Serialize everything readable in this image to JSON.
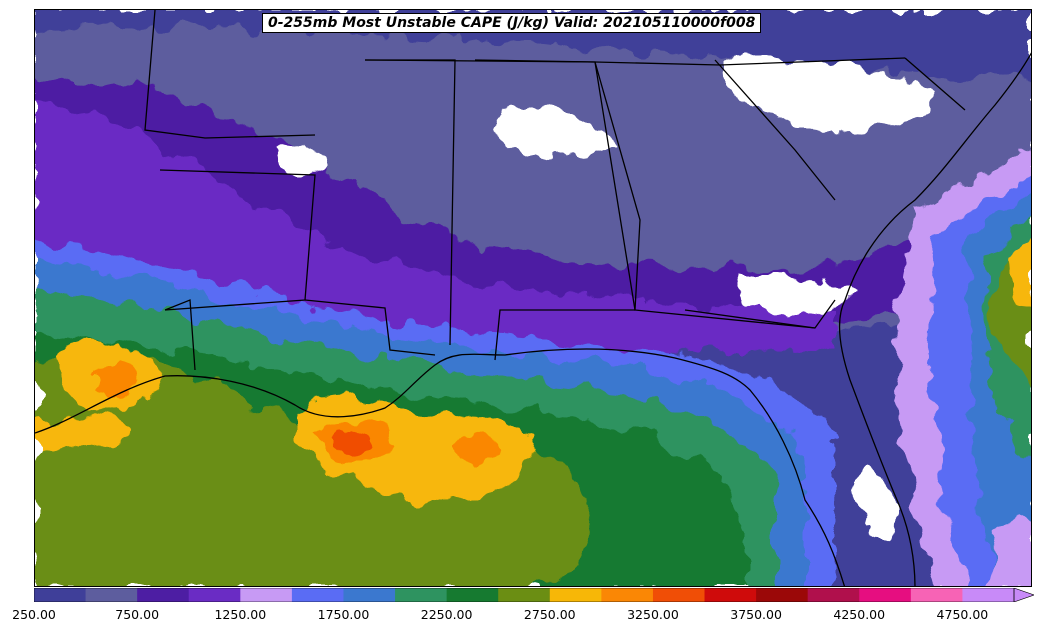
{
  "title": "0-255mb Most Unstable CAPE (J/kg) Valid: 202105110000f008",
  "colorbar": {
    "levels": [
      250,
      500,
      750,
      1000,
      1250,
      1500,
      1750,
      2000,
      2250,
      2500,
      2750,
      3000,
      3250,
      3500,
      3750,
      4000,
      4250,
      4500,
      4750,
      5000
    ],
    "colors": [
      "#3f3f99",
      "#5d5d9e",
      "#4d1ea3",
      "#6a2cc4",
      "#c79af4",
      "#5a6cf4",
      "#3b78cf",
      "#2e9360",
      "#167a30",
      "#6b8e13",
      "#f7b707",
      "#fa8705",
      "#f04e06",
      "#cf0b0b",
      "#9b0808",
      "#b0104c",
      "#e60e80",
      "#f763b5",
      "#c88af8"
    ],
    "extend": "max",
    "tick_labels": [
      "250.00",
      "750.00",
      "1250.00",
      "1750.00",
      "2250.00",
      "2750.00",
      "3250.00",
      "3750.00",
      "4250.00",
      "4750.00"
    ]
  }
}
